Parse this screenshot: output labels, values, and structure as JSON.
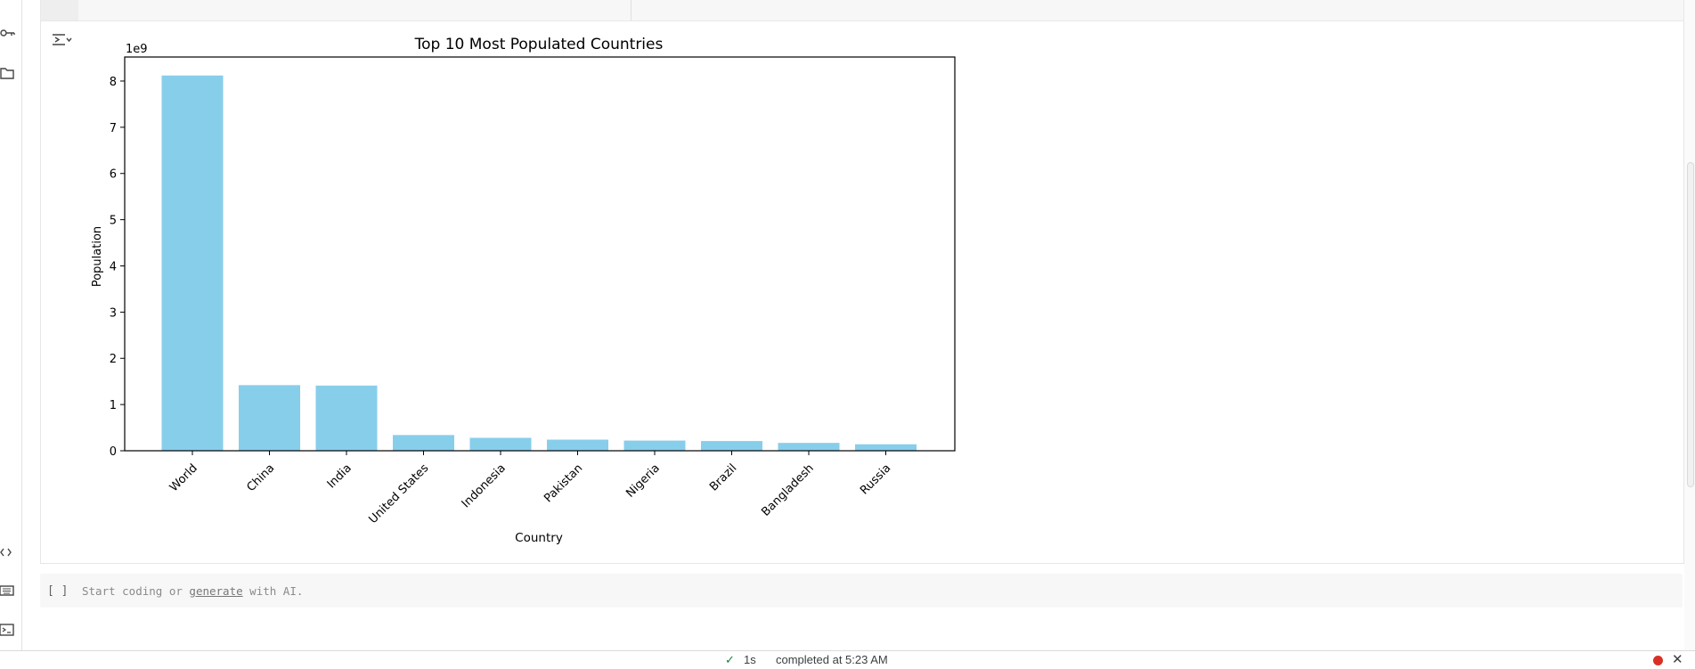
{
  "notebook": {
    "next_cell": {
      "run_brackets": "[ ]",
      "placeholder_prefix": "Start coding or ",
      "placeholder_link": "generate",
      "placeholder_suffix": " with AI."
    }
  },
  "status_bar": {
    "check_icon": "check-icon",
    "duration": "1s",
    "status_text": "completed at 5:23 AM",
    "recording_dot_color": "#d93025"
  },
  "left_rail": {
    "icons": [
      "key-icon",
      "folder-icon",
      "code-brackets-icon",
      "keyboard-icon",
      "terminal-icon"
    ]
  },
  "chart_data": {
    "type": "bar",
    "title": "Top 10 Most Populated Countries",
    "xlabel": "Country",
    "ylabel": "Population",
    "y_offset_label": "1e9",
    "categories": [
      "World",
      "China",
      "India",
      "United States",
      "Indonesia",
      "Pakistan",
      "Nigeria",
      "Brazil",
      "Bangladesh",
      "Russia"
    ],
    "values": [
      8.12,
      1.42,
      1.41,
      0.34,
      0.28,
      0.24,
      0.22,
      0.21,
      0.17,
      0.14
    ],
    "yticks": [
      "0",
      "1",
      "2",
      "3",
      "4",
      "5",
      "6",
      "7",
      "8"
    ],
    "ylim": [
      0,
      8.52
    ],
    "bar_color": "#87ceeb",
    "grid": false,
    "legend": false
  }
}
